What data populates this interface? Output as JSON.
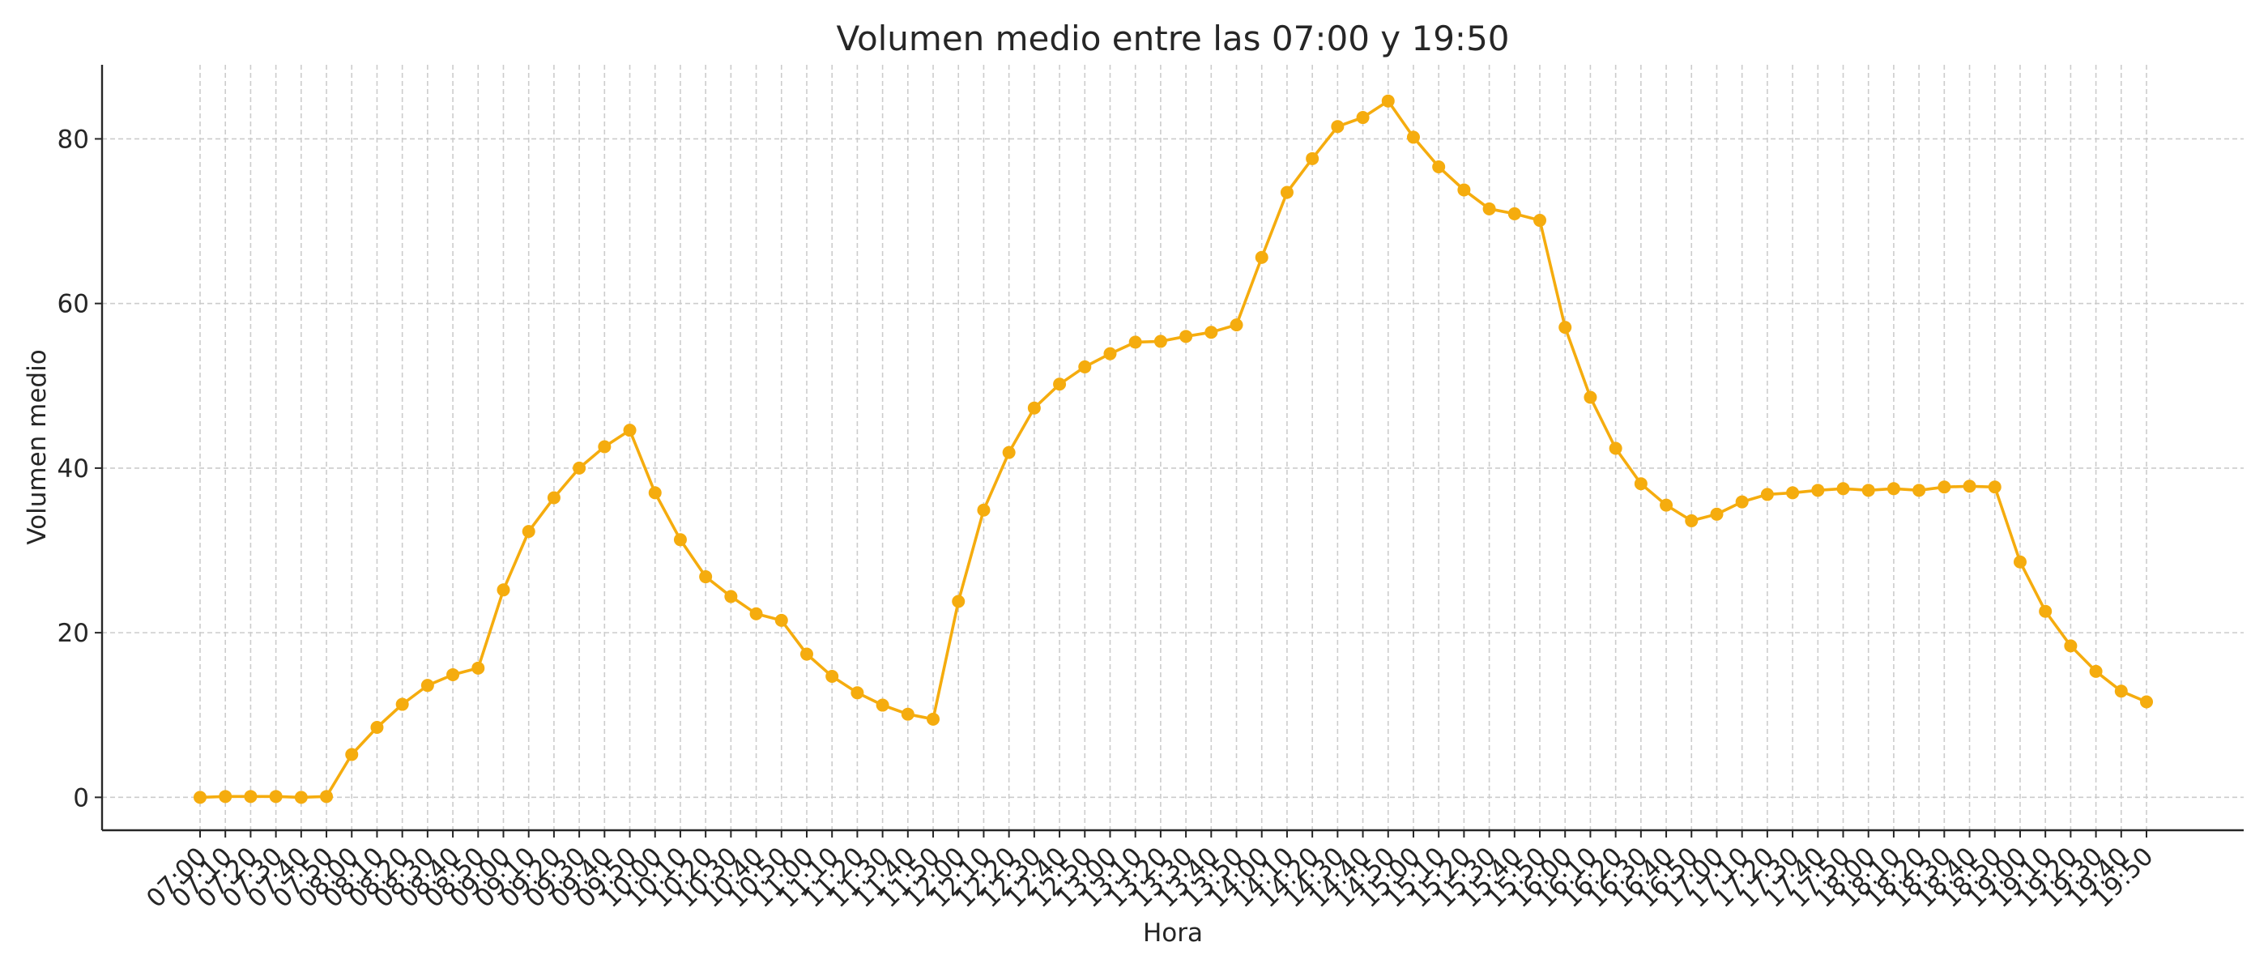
{
  "chart_data": {
    "type": "line",
    "title": "Volumen medio entre las 07:00 y 19:50",
    "xlabel": "Hora",
    "ylabel": "Volumen medio",
    "ylim": [
      -4,
      89
    ],
    "yticks": [
      0,
      20,
      40,
      60,
      80
    ],
    "grid": true,
    "color": "#f5ac0e",
    "x": [
      "07:00",
      "07:10",
      "07:20",
      "07:30",
      "07:40",
      "07:50",
      "08:00",
      "08:10",
      "08:20",
      "08:30",
      "08:40",
      "08:50",
      "09:00",
      "09:10",
      "09:20",
      "09:30",
      "09:40",
      "09:50",
      "10:00",
      "10:10",
      "10:20",
      "10:30",
      "10:40",
      "10:50",
      "11:00",
      "11:10",
      "11:20",
      "11:30",
      "11:40",
      "11:50",
      "12:00",
      "12:10",
      "12:20",
      "12:30",
      "12:40",
      "12:50",
      "13:00",
      "13:10",
      "13:20",
      "13:30",
      "13:40",
      "13:50",
      "14:00",
      "14:10",
      "14:20",
      "14:30",
      "14:40",
      "14:50",
      "15:00",
      "15:10",
      "15:20",
      "15:30",
      "15:40",
      "15:50",
      "16:00",
      "16:10",
      "16:20",
      "16:30",
      "16:40",
      "16:50",
      "17:00",
      "17:10",
      "17:20",
      "17:30",
      "17:40",
      "17:50",
      "18:00",
      "18:10",
      "18:20",
      "18:30",
      "18:40",
      "18:50",
      "19:00",
      "19:10",
      "19:20",
      "19:30",
      "19:40",
      "19:50"
    ],
    "values": [
      0.0,
      0.1,
      0.1,
      0.1,
      0.0,
      0.1,
      5.2,
      8.5,
      11.3,
      13.6,
      14.9,
      15.7,
      25.2,
      32.3,
      36.4,
      40.0,
      42.6,
      44.6,
      37.0,
      31.3,
      26.8,
      24.4,
      22.3,
      21.5,
      17.4,
      14.7,
      12.7,
      11.2,
      10.1,
      9.5,
      23.8,
      34.9,
      41.9,
      47.3,
      50.2,
      52.3,
      53.9,
      55.3,
      55.4,
      56.0,
      56.5,
      57.4,
      65.6,
      73.5,
      77.6,
      81.5,
      82.6,
      84.6,
      80.2,
      76.6,
      73.8,
      71.5,
      70.9,
      70.1,
      57.1,
      48.6,
      42.4,
      38.1,
      35.5,
      33.6,
      34.4,
      35.9,
      36.8,
      37.0,
      37.3,
      37.5,
      37.3,
      37.5,
      37.3,
      37.7,
      37.8,
      37.7,
      28.6,
      22.6,
      18.4,
      15.3,
      12.9,
      11.6
    ]
  }
}
